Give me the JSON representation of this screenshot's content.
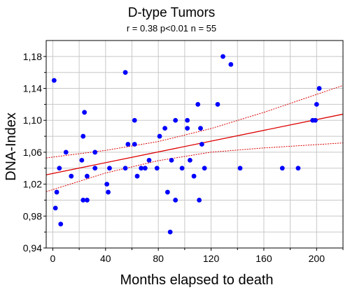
{
  "chart_data": {
    "type": "scatter",
    "title": "D-type Tumors",
    "subtitle": "r = 0.38  p<0.01  n = 55",
    "xlabel": "Months elapsed to death",
    "ylabel": "DNA-Index",
    "xlim": [
      -5,
      220
    ],
    "ylim": [
      0.94,
      1.2
    ],
    "x_ticks": [
      0,
      40,
      80,
      120,
      160,
      200
    ],
    "x_tick_labels": [
      "0",
      "40",
      "80",
      "120",
      "160",
      "200"
    ],
    "y_ticks": [
      0.94,
      0.98,
      1.02,
      1.06,
      1.1,
      1.14,
      1.18
    ],
    "y_tick_labels": [
      "0,94",
      "0,98",
      "1,02",
      "1,06",
      "1,10",
      "1,14",
      "1,18"
    ],
    "grid": true,
    "points": [
      {
        "x": 1,
        "y": 1.15
      },
      {
        "x": 2,
        "y": 0.99
      },
      {
        "x": 3,
        "y": 1.01
      },
      {
        "x": 5,
        "y": 1.04
      },
      {
        "x": 6,
        "y": 0.97
      },
      {
        "x": 10,
        "y": 1.06
      },
      {
        "x": 14,
        "y": 1.03
      },
      {
        "x": 22,
        "y": 1.05
      },
      {
        "x": 23,
        "y": 1.08
      },
      {
        "x": 24,
        "y": 1.11
      },
      {
        "x": 23,
        "y": 1.0
      },
      {
        "x": 26,
        "y": 1.0
      },
      {
        "x": 26,
        "y": 1.03
      },
      {
        "x": 32,
        "y": 1.06
      },
      {
        "x": 32,
        "y": 1.04
      },
      {
        "x": 41,
        "y": 1.02
      },
      {
        "x": 42,
        "y": 1.01
      },
      {
        "x": 43,
        "y": 1.04
      },
      {
        "x": 55,
        "y": 1.16
      },
      {
        "x": 55,
        "y": 1.04
      },
      {
        "x": 57,
        "y": 1.07
      },
      {
        "x": 62,
        "y": 1.1
      },
      {
        "x": 62,
        "y": 1.07
      },
      {
        "x": 64,
        "y": 1.03
      },
      {
        "x": 67,
        "y": 1.04
      },
      {
        "x": 70,
        "y": 1.04
      },
      {
        "x": 73,
        "y": 1.05
      },
      {
        "x": 79,
        "y": 1.04
      },
      {
        "x": 81,
        "y": 1.08
      },
      {
        "x": 85,
        "y": 1.09
      },
      {
        "x": 87,
        "y": 1.01
      },
      {
        "x": 89,
        "y": 0.96
      },
      {
        "x": 90,
        "y": 1.05
      },
      {
        "x": 93,
        "y": 1.1
      },
      {
        "x": 93,
        "y": 1.0
      },
      {
        "x": 98,
        "y": 1.04
      },
      {
        "x": 102,
        "y": 1.1
      },
      {
        "x": 102,
        "y": 1.09
      },
      {
        "x": 104,
        "y": 1.05
      },
      {
        "x": 107,
        "y": 1.03
      },
      {
        "x": 110,
        "y": 1.12
      },
      {
        "x": 111,
        "y": 1.0
      },
      {
        "x": 112,
        "y": 1.09
      },
      {
        "x": 113,
        "y": 1.07
      },
      {
        "x": 115,
        "y": 1.04
      },
      {
        "x": 125,
        "y": 1.12
      },
      {
        "x": 129,
        "y": 1.18
      },
      {
        "x": 135,
        "y": 1.17
      },
      {
        "x": 142,
        "y": 1.04
      },
      {
        "x": 174,
        "y": 1.04
      },
      {
        "x": 186,
        "y": 1.04
      },
      {
        "x": 197,
        "y": 1.1
      },
      {
        "x": 200,
        "y": 1.12
      },
      {
        "x": 202,
        "y": 1.14
      },
      {
        "x": 199,
        "y": 1.1
      }
    ],
    "regression_line": {
      "x": [
        -5,
        220
      ],
      "y": [
        1.0317,
        1.1077
      ]
    },
    "confidence_upper": {
      "x": [
        -5,
        40,
        80,
        120,
        160,
        220
      ],
      "y": [
        1.0528,
        1.0623,
        1.0734,
        1.0897,
        1.1099,
        1.1437
      ]
    },
    "confidence_lower": {
      "x": [
        -5,
        40,
        80,
        120,
        160,
        220
      ],
      "y": [
        1.0106,
        1.0339,
        1.0494,
        1.0601,
        1.0654,
        1.0717
      ]
    },
    "colors": {
      "points": "#0000ff",
      "regression": "#dd0000",
      "grid": "#c8c8c8",
      "axis": "#000000"
    }
  }
}
